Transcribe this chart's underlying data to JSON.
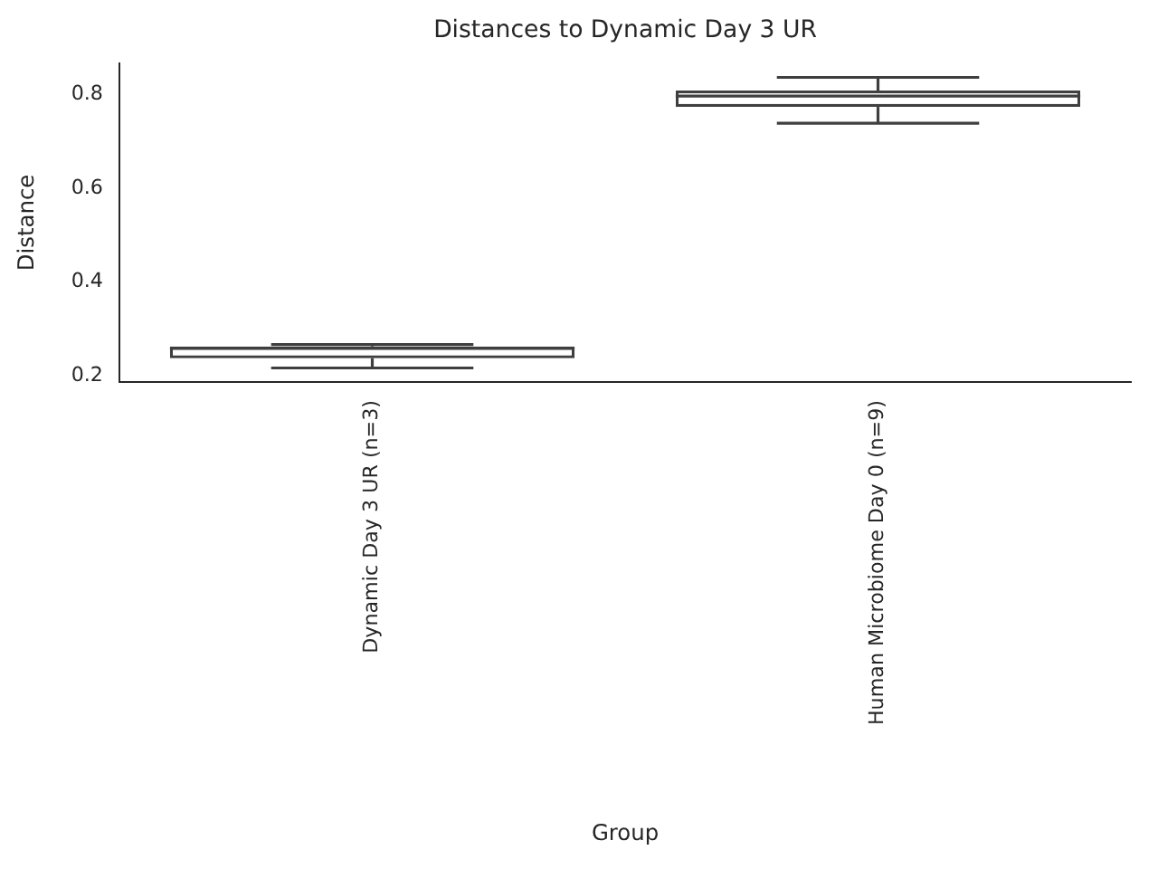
{
  "chart_data": {
    "type": "box",
    "title": "Distances to Dynamic Day 3 UR",
    "xlabel": "Group",
    "ylabel": "Distance",
    "categories": [
      "Dynamic Day 3 UR (n=3)",
      "Human Microbiome Day 0 (n=9)"
    ],
    "boxes": [
      {
        "low": 0.216,
        "q1": 0.237,
        "median": 0.258,
        "q3": 0.262,
        "high": 0.266
      },
      {
        "low": 0.739,
        "q1": 0.774,
        "median": 0.797,
        "q3": 0.809,
        "high": 0.837
      }
    ],
    "color": "#3f3f3f",
    "ylim": [
      0.186,
      0.867
    ],
    "yticks": [
      0.2,
      0.4,
      0.6,
      0.8
    ]
  }
}
